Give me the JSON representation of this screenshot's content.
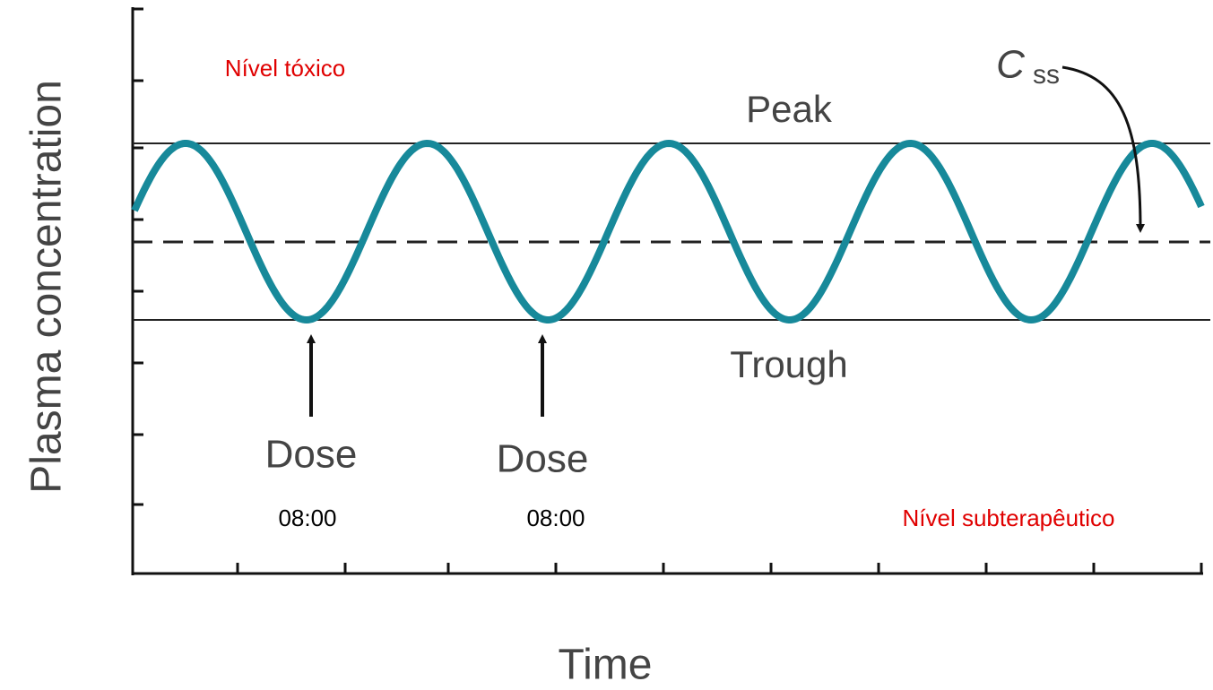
{
  "axes": {
    "y_label": "Plasma concentration",
    "x_label": "Time"
  },
  "levels": {
    "toxic": "Nível tóxico",
    "subtherapeutic": "Nível subterapêutico"
  },
  "lines": {
    "peak": "Peak",
    "trough": "Trough",
    "css": {
      "symbol": "C",
      "subscript": "ss"
    }
  },
  "doses": [
    {
      "label": "Dose",
      "time": "08:00"
    },
    {
      "label": "Dose",
      "time": "08:00"
    }
  ]
}
